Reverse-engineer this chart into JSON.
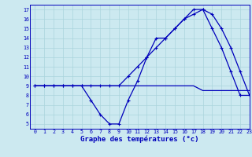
{
  "title": "Graphe des températures (°c)",
  "bg_color": "#cce9f0",
  "grid_color": "#aad4dc",
  "line_color": "#0000bb",
  "xlim": [
    -0.5,
    23
  ],
  "ylim": [
    4.5,
    17.5
  ],
  "xticks": [
    0,
    1,
    2,
    3,
    4,
    5,
    6,
    7,
    8,
    9,
    10,
    11,
    12,
    13,
    14,
    15,
    16,
    17,
    18,
    19,
    20,
    21,
    22,
    23
  ],
  "yticks": [
    5,
    6,
    7,
    8,
    9,
    10,
    11,
    12,
    13,
    14,
    15,
    16,
    17
  ],
  "hours": [
    0,
    1,
    2,
    3,
    4,
    5,
    6,
    7,
    8,
    9,
    10,
    11,
    12,
    13,
    14,
    15,
    16,
    17,
    18,
    19,
    20,
    21,
    22,
    23
  ],
  "temp_line1": [
    9,
    9,
    9,
    9,
    9,
    9,
    7.5,
    6,
    5,
    5,
    7.5,
    9.5,
    12,
    14,
    14,
    15,
    16,
    17,
    17,
    15,
    13,
    10.5,
    8,
    8
  ],
  "temp_line2": [
    9,
    9,
    9,
    9,
    9,
    9,
    9,
    9,
    9,
    9,
    10,
    11,
    12,
    13,
    14,
    15,
    16,
    16.5,
    17,
    16.5,
    15,
    13,
    10.5,
    8
  ],
  "temp_line3": [
    9,
    9,
    9,
    9,
    9,
    9,
    9,
    9,
    9,
    9,
    9,
    9,
    9,
    9,
    9,
    9,
    9,
    9,
    8.5,
    8.5,
    8.5,
    8.5,
    8.5,
    8.5
  ]
}
